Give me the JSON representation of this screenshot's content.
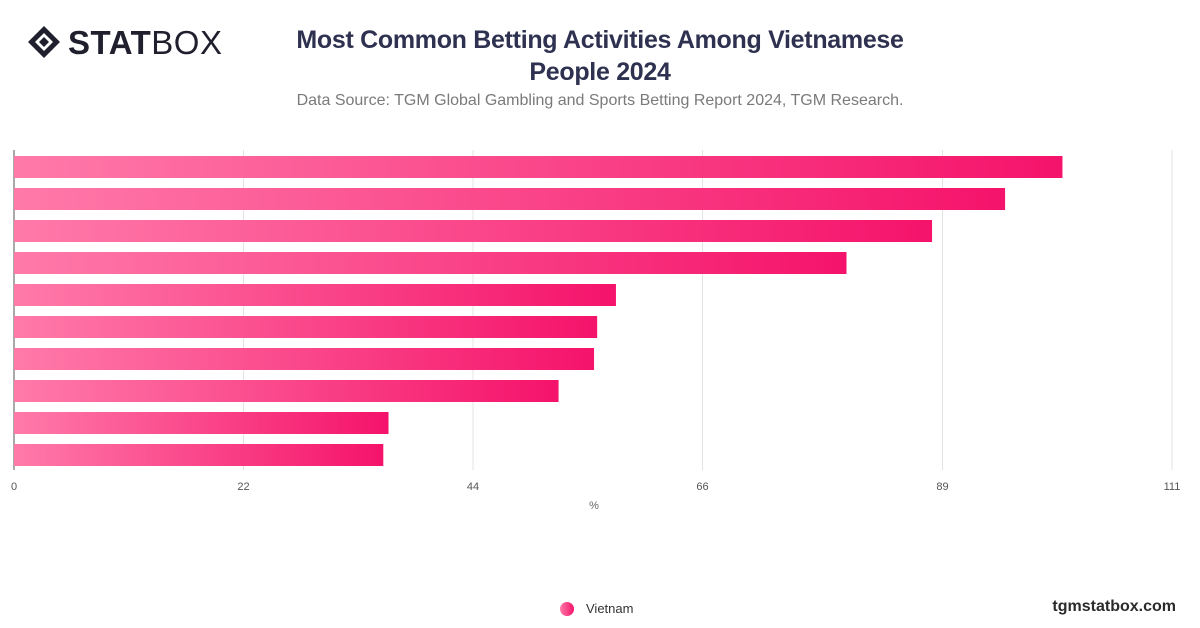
{
  "header": {
    "logo_bold": "STAT",
    "logo_light": "BOX",
    "title_line1": "Most Common Betting Activities Among Vietnamese",
    "title_line2": "People 2024",
    "subtitle": "Data Source: TGM Global Gambling and Sports Betting Report 2024, TGM Research."
  },
  "colors": {
    "bar_start": "#ff7aa9",
    "bar_end": "#f5136b",
    "grid": "#e3e3e3"
  },
  "chart_data": {
    "type": "bar",
    "orientation": "horizontal",
    "categories": [
      "",
      "",
      "",
      "",
      "",
      "",
      "",
      "",
      "",
      ""
    ],
    "series": [
      {
        "name": "Vietnam",
        "values": [
          100.5,
          95,
          88,
          79.8,
          57.7,
          55.9,
          55.6,
          52.2,
          35.9,
          35.4
        ]
      }
    ],
    "xlabel": "%",
    "xlim": [
      0,
      111
    ],
    "xticks": [
      0,
      22,
      44,
      66,
      89,
      111
    ],
    "grid": true,
    "legend_position": "bottom-center"
  },
  "legend": {
    "label": "Vietnam"
  },
  "footer": {
    "site": "tgmstatbox.com"
  }
}
